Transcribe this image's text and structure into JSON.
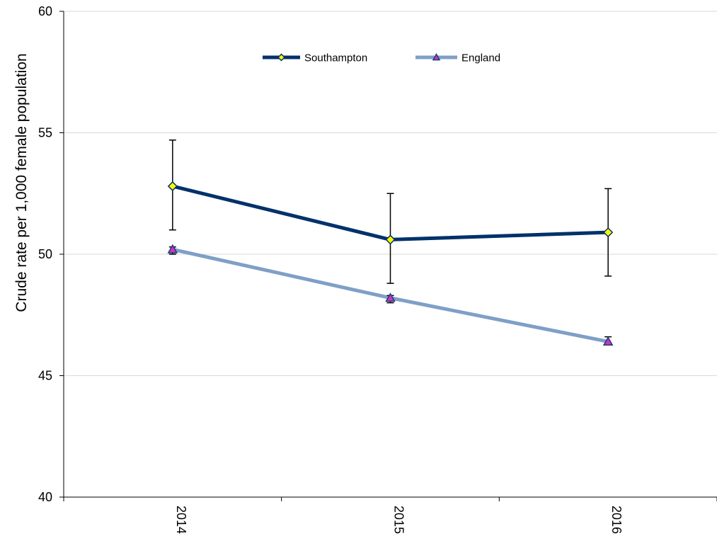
{
  "chart_data": {
    "type": "line",
    "title": "",
    "xlabel": "",
    "ylabel": "Crude rate per 1,000 female population",
    "categories": [
      "2014",
      "2015",
      "2016"
    ],
    "ylim": [
      40,
      60
    ],
    "yticks": [
      40,
      45,
      50,
      55,
      60
    ],
    "grid": "horizontal",
    "legend": {
      "placement": "top-center"
    },
    "series": [
      {
        "name": "Southampton",
        "values": [
          52.8,
          50.6,
          50.9
        ],
        "error_low": [
          51.0,
          48.8,
          49.1
        ],
        "error_high": [
          54.7,
          52.5,
          52.7
        ],
        "line_color": "#00316B",
        "marker": "diamond",
        "marker_fill": "#FFFF00",
        "marker_stroke": "#00316B"
      },
      {
        "name": "England",
        "values": [
          50.2,
          48.2,
          46.4
        ],
        "error_low": [
          50.0,
          48.0,
          46.3
        ],
        "error_high": [
          50.3,
          48.3,
          46.6
        ],
        "line_color": "#7F9FC7",
        "marker": "triangle",
        "marker_fill": "#CC33CC",
        "marker_stroke": "#1F3B70"
      }
    ]
  }
}
